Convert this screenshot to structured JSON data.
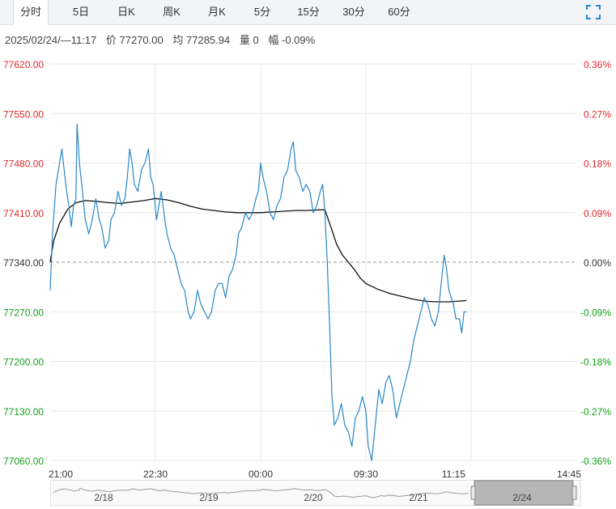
{
  "tabs": [
    {
      "label": "分时",
      "active": true
    },
    {
      "label": "5日"
    },
    {
      "label": "日K"
    },
    {
      "label": "周K"
    },
    {
      "label": "月K"
    },
    {
      "label": "5分"
    },
    {
      "label": "15分"
    },
    {
      "label": "30分"
    },
    {
      "label": "60分"
    }
  ],
  "info": {
    "datetime": "2025/02/24/—11:17",
    "price_label": "价",
    "price": "77270.00",
    "avg_label": "均",
    "avg": "77285.94",
    "vol_label": "量",
    "vol": "0",
    "range_label": "幅",
    "range": "-0.09%"
  },
  "icons": {
    "fullscreen": "fullscreen-icon"
  },
  "colors": {
    "price_line": "#2a87c8",
    "avg_line": "#111111",
    "up": "#e0282e",
    "down": "#10a018",
    "grid": "#e8e8e8",
    "baseline": "#9a9a9a"
  },
  "chart_data": {
    "type": "line",
    "ylim": [
      77060.0,
      77620.0
    ],
    "baseline": 77340.0,
    "y_ticks": [
      "77620.00",
      "77550.00",
      "77480.00",
      "77410.00",
      "77340.00",
      "77270.00",
      "77200.00",
      "77130.00",
      "77060.00"
    ],
    "pct_ticks": [
      "0.36%",
      "0.27%",
      "0.18%",
      "0.09%",
      "0.00%",
      "-0.09%",
      "-0.18%",
      "-0.27%",
      "-0.36%"
    ],
    "x_ticks": [
      "21:00",
      "22:30",
      "00:00",
      "09:30",
      "11:15",
      "14:45"
    ],
    "x_tick_index": [
      0,
      90,
      180,
      270,
      345,
      450
    ],
    "total_points": 451,
    "price_points": [
      [
        0,
        77300
      ],
      [
        2,
        77380
      ],
      [
        5,
        77450
      ],
      [
        8,
        77480
      ],
      [
        10,
        77500
      ],
      [
        12,
        77470
      ],
      [
        14,
        77440
      ],
      [
        16,
        77420
      ],
      [
        18,
        77390
      ],
      [
        20,
        77420
      ],
      [
        22,
        77430
      ],
      [
        23,
        77535
      ],
      [
        25,
        77480
      ],
      [
        27,
        77450
      ],
      [
        30,
        77400
      ],
      [
        33,
        77380
      ],
      [
        36,
        77400
      ],
      [
        39,
        77430
      ],
      [
        42,
        77400
      ],
      [
        44,
        77390
      ],
      [
        47,
        77360
      ],
      [
        50,
        77370
      ],
      [
        52,
        77400
      ],
      [
        55,
        77410
      ],
      [
        58,
        77440
      ],
      [
        61,
        77420
      ],
      [
        64,
        77430
      ],
      [
        66,
        77460
      ],
      [
        68,
        77500
      ],
      [
        70,
        77480
      ],
      [
        72,
        77450
      ],
      [
        75,
        77440
      ],
      [
        78,
        77470
      ],
      [
        81,
        77480
      ],
      [
        84,
        77500
      ],
      [
        86,
        77460
      ],
      [
        88,
        77450
      ],
      [
        91,
        77400
      ],
      [
        93,
        77420
      ],
      [
        95,
        77440
      ],
      [
        98,
        77400
      ],
      [
        100,
        77380
      ],
      [
        103,
        77360
      ],
      [
        106,
        77350
      ],
      [
        109,
        77330
      ],
      [
        112,
        77310
      ],
      [
        115,
        77300
      ],
      [
        118,
        77270
      ],
      [
        120,
        77260
      ],
      [
        123,
        77270
      ],
      [
        126,
        77300
      ],
      [
        129,
        77280
      ],
      [
        132,
        77270
      ],
      [
        135,
        77260
      ],
      [
        138,
        77270
      ],
      [
        141,
        77300
      ],
      [
        144,
        77310
      ],
      [
        147,
        77310
      ],
      [
        150,
        77290
      ],
      [
        153,
        77320
      ],
      [
        156,
        77330
      ],
      [
        159,
        77350
      ],
      [
        161,
        77380
      ],
      [
        164,
        77390
      ],
      [
        167,
        77410
      ],
      [
        170,
        77400
      ],
      [
        173,
        77410
      ],
      [
        176,
        77430
      ],
      [
        178,
        77440
      ],
      [
        180,
        77480
      ],
      [
        182,
        77460
      ],
      [
        185,
        77440
      ],
      [
        188,
        77410
      ],
      [
        191,
        77400
      ],
      [
        194,
        77420
      ],
      [
        197,
        77430
      ],
      [
        200,
        77460
      ],
      [
        203,
        77470
      ],
      [
        206,
        77500
      ],
      [
        208,
        77510
      ],
      [
        210,
        77470
      ],
      [
        213,
        77460
      ],
      [
        216,
        77440
      ],
      [
        219,
        77450
      ],
      [
        222,
        77440
      ],
      [
        225,
        77410
      ],
      [
        228,
        77420
      ],
      [
        231,
        77440
      ],
      [
        233,
        77450
      ],
      [
        235,
        77410
      ],
      [
        237,
        77340
      ],
      [
        239,
        77250
      ],
      [
        241,
        77150
      ],
      [
        243,
        77110
      ],
      [
        246,
        77120
      ],
      [
        249,
        77140
      ],
      [
        252,
        77110
      ],
      [
        255,
        77100
      ],
      [
        258,
        77080
      ],
      [
        261,
        77120
      ],
      [
        264,
        77130
      ],
      [
        267,
        77150
      ],
      [
        270,
        77130
      ],
      [
        272,
        77080
      ],
      [
        275,
        77060
      ],
      [
        278,
        77110
      ],
      [
        281,
        77160
      ],
      [
        284,
        77140
      ],
      [
        287,
        77170
      ],
      [
        290,
        77180
      ],
      [
        293,
        77160
      ],
      [
        296,
        77120
      ],
      [
        299,
        77140
      ],
      [
        302,
        77160
      ],
      [
        305,
        77180
      ],
      [
        308,
        77200
      ],
      [
        311,
        77230
      ],
      [
        314,
        77250
      ],
      [
        317,
        77270
      ],
      [
        320,
        77290
      ],
      [
        323,
        77280
      ],
      [
        326,
        77260
      ],
      [
        329,
        77250
      ],
      [
        332,
        77270
      ],
      [
        335,
        77320
      ],
      [
        337,
        77350
      ],
      [
        339,
        77330
      ],
      [
        341,
        77300
      ],
      [
        343,
        77290
      ],
      [
        345,
        77280
      ],
      [
        347,
        77260
      ],
      [
        350,
        77260
      ],
      [
        352,
        77240
      ],
      [
        354,
        77270
      ],
      [
        356,
        77270
      ]
    ],
    "avg_points": [
      [
        0,
        77340
      ],
      [
        3,
        77370
      ],
      [
        8,
        77395
      ],
      [
        15,
        77415
      ],
      [
        22,
        77424
      ],
      [
        30,
        77427
      ],
      [
        40,
        77426
      ],
      [
        50,
        77424
      ],
      [
        60,
        77423
      ],
      [
        70,
        77425
      ],
      [
        80,
        77427
      ],
      [
        90,
        77430
      ],
      [
        100,
        77428
      ],
      [
        110,
        77424
      ],
      [
        120,
        77419
      ],
      [
        130,
        77415
      ],
      [
        140,
        77413
      ],
      [
        150,
        77411
      ],
      [
        160,
        77410
      ],
      [
        170,
        77410
      ],
      [
        180,
        77410
      ],
      [
        190,
        77411
      ],
      [
        200,
        77412
      ],
      [
        210,
        77413
      ],
      [
        220,
        77413
      ],
      [
        230,
        77414
      ],
      [
        235,
        77414
      ],
      [
        240,
        77390
      ],
      [
        245,
        77365
      ],
      [
        250,
        77350
      ],
      [
        255,
        77340
      ],
      [
        260,
        77330
      ],
      [
        265,
        77318
      ],
      [
        270,
        77310
      ],
      [
        280,
        77302
      ],
      [
        290,
        77296
      ],
      [
        300,
        77292
      ],
      [
        310,
        77288
      ],
      [
        320,
        77285
      ],
      [
        330,
        77284
      ],
      [
        340,
        77284
      ],
      [
        350,
        77285
      ],
      [
        356,
        77286
      ]
    ],
    "sessions": [
      "2/18",
      "2/19",
      "2/20",
      "2/21",
      "2/24"
    ]
  }
}
